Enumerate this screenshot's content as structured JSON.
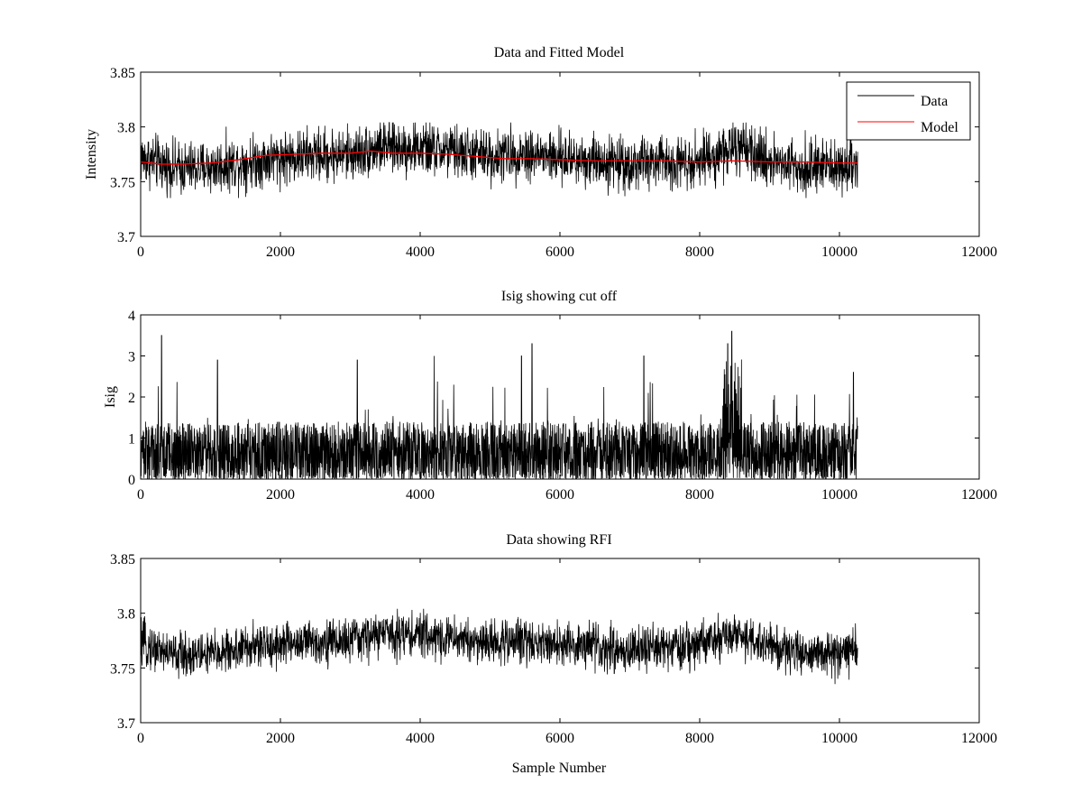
{
  "chart_data": [
    {
      "id": "panel1",
      "type": "line",
      "title": "Data and Fitted Model",
      "xlabel": "",
      "ylabel": "Intensity",
      "xlim": [
        0,
        12000
      ],
      "ylim": [
        3.7,
        3.85
      ],
      "xticks": [
        0,
        2000,
        4000,
        6000,
        8000,
        10000,
        12000
      ],
      "yticks": [
        3.7,
        3.75,
        3.8,
        3.85
      ],
      "xtick_labels": [
        "0",
        "2000",
        "4000",
        "6000",
        "8000",
        "10000",
        "12000"
      ],
      "ytick_labels": [
        "3.7",
        "3.75",
        "3.8",
        "3.85"
      ],
      "grid": false,
      "legend": {
        "placement": "top-right",
        "entries": [
          {
            "label": "Data",
            "color": "#000000"
          },
          {
            "label": "Model",
            "color": "#ff0000"
          }
        ]
      },
      "series": [
        {
          "name": "Data",
          "color": "#000000",
          "kind": "noise-band",
          "x_range": [
            0,
            10260
          ],
          "center_x": [
            0,
            500,
            1000,
            1500,
            2000,
            2500,
            3000,
            3500,
            4000,
            4500,
            5000,
            5500,
            6000,
            6500,
            7000,
            7500,
            8000,
            8300,
            8500,
            8700,
            9000,
            9500,
            10000,
            10260
          ],
          "center_y": [
            3.772,
            3.762,
            3.763,
            3.768,
            3.772,
            3.774,
            3.775,
            3.782,
            3.78,
            3.777,
            3.773,
            3.776,
            3.771,
            3.77,
            3.766,
            3.768,
            3.77,
            3.776,
            3.781,
            3.775,
            3.77,
            3.764,
            3.763,
            3.768
          ],
          "noise_amplitude": 0.012,
          "min_y": 3.735,
          "max_y": 3.804
        },
        {
          "name": "Model",
          "color": "#ff0000",
          "kind": "line",
          "x": [
            0,
            300,
            600,
            1000,
            1400,
            1800,
            2200,
            2600,
            3000,
            3300,
            3600,
            4000,
            4400,
            4800,
            5200,
            5600,
            6000,
            6500,
            7000,
            7500,
            8000,
            8500,
            9000,
            9500,
            10000,
            10260
          ],
          "y": [
            3.768,
            3.766,
            3.766,
            3.767,
            3.77,
            3.774,
            3.775,
            3.776,
            3.776,
            3.778,
            3.776,
            3.776,
            3.775,
            3.773,
            3.771,
            3.771,
            3.77,
            3.769,
            3.769,
            3.769,
            3.768,
            3.769,
            3.768,
            3.768,
            3.767,
            3.767
          ]
        }
      ]
    },
    {
      "id": "panel2",
      "type": "line",
      "title": "Isig showing cut off",
      "xlabel": "",
      "ylabel": "Isig",
      "xlim": [
        0,
        12000
      ],
      "ylim": [
        0,
        4
      ],
      "xticks": [
        0,
        2000,
        4000,
        6000,
        8000,
        10000,
        12000
      ],
      "yticks": [
        0,
        1,
        2,
        3,
        4
      ],
      "xtick_labels": [
        "0",
        "2000",
        "4000",
        "6000",
        "8000",
        "10000",
        "12000"
      ],
      "ytick_labels": [
        "0",
        "1",
        "2",
        "3",
        "4"
      ],
      "grid": false,
      "series": [
        {
          "name": "Isig",
          "color": "#000000",
          "kind": "abs-noise",
          "x_range": [
            0,
            10260
          ],
          "typical_max": 1.4,
          "peaks": [
            {
              "x": 300,
              "y": 3.5
            },
            {
              "x": 1100,
              "y": 2.9
            },
            {
              "x": 3100,
              "y": 2.9
            },
            {
              "x": 4200,
              "y": 3.0
            },
            {
              "x": 5450,
              "y": 3.0
            },
            {
              "x": 5600,
              "y": 3.3
            },
            {
              "x": 7200,
              "y": 3.0
            },
            {
              "x": 8400,
              "y": 3.3
            },
            {
              "x": 8460,
              "y": 3.6
            },
            {
              "x": 10200,
              "y": 2.6
            }
          ]
        }
      ]
    },
    {
      "id": "panel3",
      "type": "line",
      "title": "Data showing RFI",
      "xlabel": "Sample Number",
      "ylabel": "",
      "xlim": [
        0,
        12000
      ],
      "ylim": [
        3.7,
        3.85
      ],
      "xticks": [
        0,
        2000,
        4000,
        6000,
        8000,
        10000,
        12000
      ],
      "yticks": [
        3.7,
        3.75,
        3.8,
        3.85
      ],
      "xtick_labels": [
        "0",
        "2000",
        "4000",
        "6000",
        "8000",
        "10000",
        "12000"
      ],
      "ytick_labels": [
        "3.7",
        "3.75",
        "3.8",
        "3.85"
      ],
      "grid": false,
      "series": [
        {
          "name": "Data",
          "color": "#000000",
          "kind": "noise-band",
          "x_range": [
            0,
            10260
          ],
          "center_x": [
            0,
            500,
            1000,
            1500,
            2000,
            2500,
            3000,
            3500,
            4000,
            4500,
            5000,
            5500,
            6000,
            6500,
            7000,
            7500,
            8000,
            8300,
            8500,
            8700,
            9000,
            9500,
            10000,
            10260
          ],
          "center_y": [
            3.772,
            3.762,
            3.763,
            3.768,
            3.772,
            3.774,
            3.775,
            3.782,
            3.78,
            3.777,
            3.773,
            3.776,
            3.771,
            3.77,
            3.766,
            3.768,
            3.77,
            3.776,
            3.781,
            3.775,
            3.77,
            3.764,
            3.763,
            3.768
          ],
          "noise_amplitude": 0.01,
          "min_y": 3.735,
          "max_y": 3.804
        }
      ]
    }
  ]
}
